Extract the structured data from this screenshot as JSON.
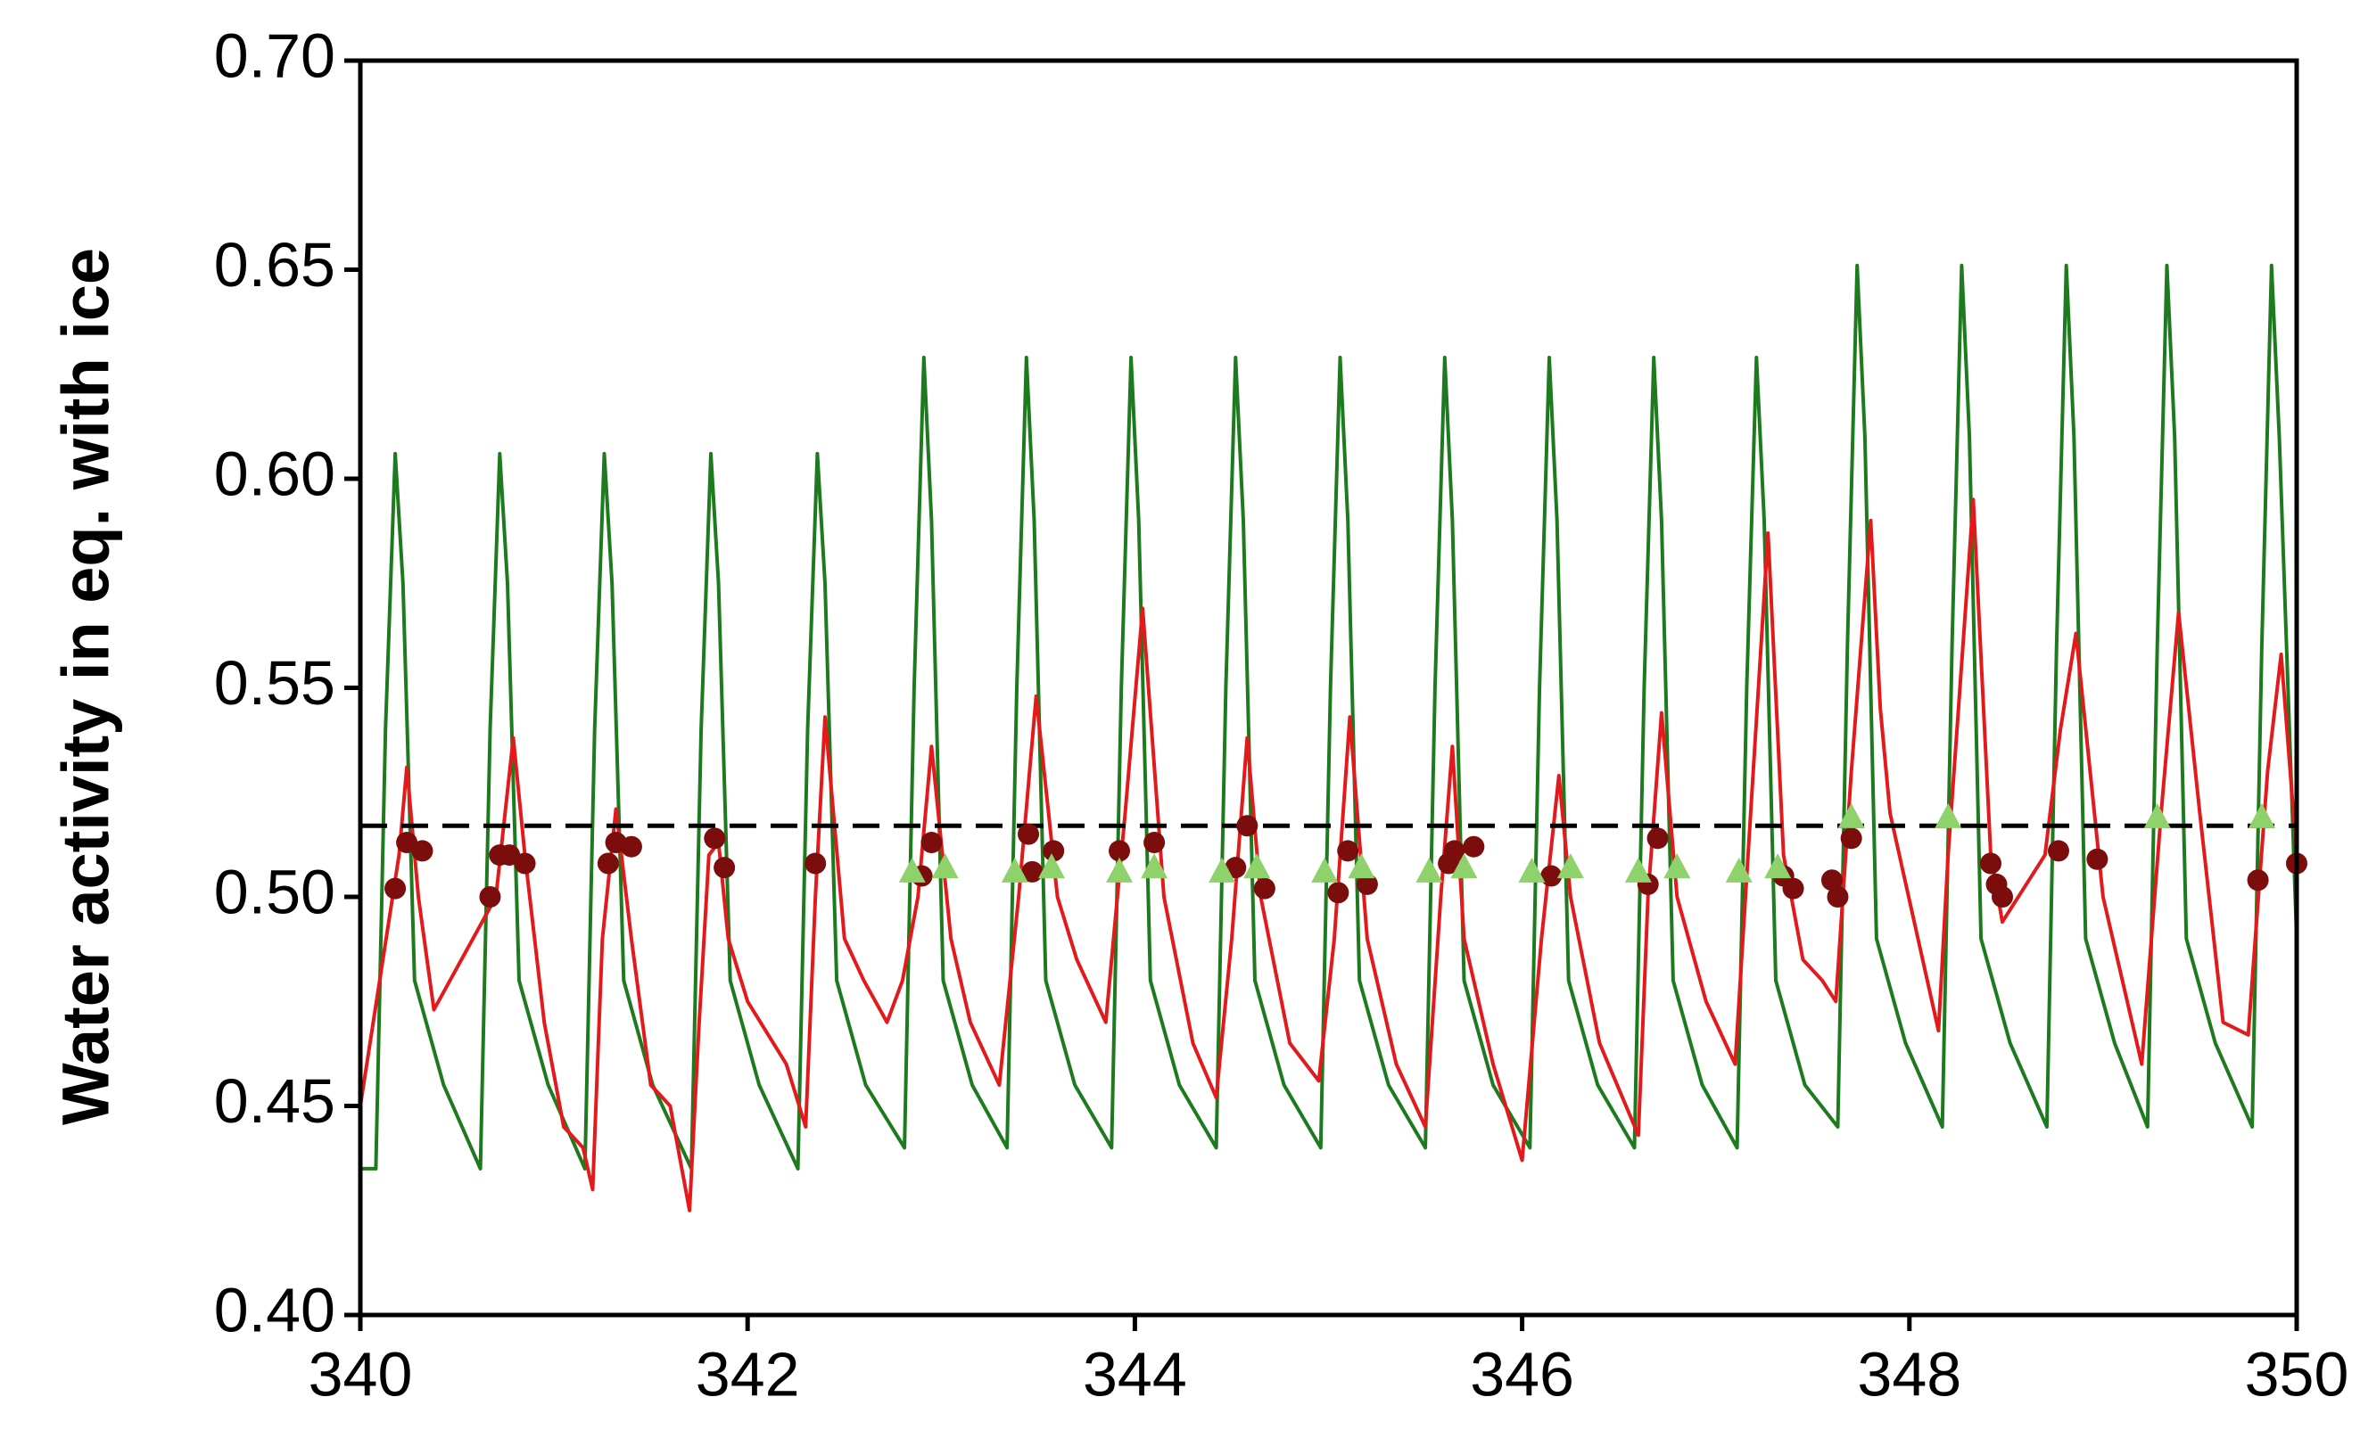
{
  "chart_data": {
    "type": "line",
    "ylabel": "Water activity in eq. with ice",
    "xlim": [
      340,
      350
    ],
    "xticks": [
      340,
      342,
      344,
      346,
      348,
      350
    ],
    "ylim": [
      0.4,
      0.7
    ],
    "yticks": [
      {
        "value": 0.4,
        "label": "0.40"
      },
      0.45,
      {
        "value": 0.5,
        "label": "0.50"
      },
      0.55,
      {
        "value": 0.6,
        "label": "0.60"
      },
      0.65,
      {
        "value": 0.7,
        "label": "0.70"
      }
    ],
    "hline": 0.517,
    "hline_color": "#000000",
    "series": [
      {
        "color": "#1e7a1e",
        "line": true,
        "marker": "none",
        "x": [
          340.0,
          340.08,
          340.13,
          340.18,
          340.22,
          340.28,
          340.43,
          340.62,
          340.67,
          340.72,
          340.76,
          340.82,
          340.97,
          341.16,
          341.21,
          341.26,
          341.3,
          341.36,
          341.51,
          341.71,
          341.76,
          341.81,
          341.85,
          341.91,
          342.06,
          342.26,
          342.31,
          342.36,
          342.4,
          342.46,
          342.61,
          342.81,
          342.86,
          342.91,
          342.95,
          343.01,
          343.16,
          343.34,
          343.39,
          343.44,
          343.48,
          343.54,
          343.69,
          343.88,
          343.93,
          343.98,
          344.02,
          344.08,
          344.23,
          344.42,
          344.47,
          344.52,
          344.56,
          344.62,
          344.77,
          344.96,
          345.01,
          345.06,
          345.1,
          345.16,
          345.31,
          345.5,
          345.55,
          345.6,
          345.64,
          345.7,
          345.85,
          346.04,
          346.09,
          346.14,
          346.18,
          346.24,
          346.39,
          346.58,
          346.63,
          346.68,
          346.72,
          346.78,
          346.93,
          347.11,
          347.16,
          347.21,
          347.25,
          347.31,
          347.46,
          347.63,
          347.68,
          347.73,
          347.77,
          347.83,
          347.98,
          348.17,
          348.22,
          348.27,
          348.31,
          348.37,
          348.52,
          348.71,
          348.76,
          348.81,
          348.85,
          348.91,
          349.06,
          349.23,
          349.28,
          349.33,
          349.37,
          349.43,
          349.58,
          349.77,
          349.82,
          349.87,
          349.91,
          350.0
        ],
        "values": [
          0.435,
          0.435,
          0.54,
          0.606,
          0.575,
          0.48,
          0.455,
          0.435,
          0.54,
          0.606,
          0.575,
          0.48,
          0.455,
          0.435,
          0.54,
          0.606,
          0.575,
          0.48,
          0.455,
          0.435,
          0.54,
          0.606,
          0.575,
          0.48,
          0.455,
          0.435,
          0.54,
          0.606,
          0.575,
          0.48,
          0.455,
          0.44,
          0.55,
          0.629,
          0.59,
          0.48,
          0.455,
          0.44,
          0.55,
          0.629,
          0.59,
          0.48,
          0.455,
          0.44,
          0.55,
          0.629,
          0.59,
          0.48,
          0.455,
          0.44,
          0.55,
          0.629,
          0.59,
          0.48,
          0.455,
          0.44,
          0.55,
          0.629,
          0.59,
          0.48,
          0.455,
          0.44,
          0.55,
          0.629,
          0.59,
          0.48,
          0.455,
          0.44,
          0.55,
          0.629,
          0.59,
          0.48,
          0.455,
          0.44,
          0.55,
          0.629,
          0.59,
          0.48,
          0.455,
          0.44,
          0.55,
          0.629,
          0.59,
          0.48,
          0.455,
          0.445,
          0.56,
          0.651,
          0.61,
          0.49,
          0.465,
          0.445,
          0.56,
          0.651,
          0.61,
          0.49,
          0.465,
          0.445,
          0.56,
          0.651,
          0.61,
          0.49,
          0.465,
          0.445,
          0.56,
          0.651,
          0.61,
          0.49,
          0.465,
          0.445,
          0.56,
          0.651,
          0.61,
          0.49
        ]
      },
      {
        "color": "#e31a1c",
        "line": true,
        "marker": "none",
        "x": [
          340.0,
          340.1,
          340.2,
          340.24,
          340.3,
          340.38,
          340.7,
          340.79,
          340.85,
          340.95,
          341.05,
          341.15,
          341.2,
          341.25,
          341.32,
          341.4,
          341.5,
          341.6,
          341.7,
          341.75,
          341.8,
          341.85,
          341.9,
          342.0,
          342.2,
          342.3,
          342.35,
          342.4,
          342.5,
          342.6,
          342.72,
          342.8,
          342.88,
          342.95,
          343.05,
          343.15,
          343.3,
          343.4,
          343.49,
          343.6,
          343.7,
          343.85,
          343.95,
          344.04,
          344.15,
          344.3,
          344.42,
          344.5,
          344.58,
          344.65,
          344.8,
          344.95,
          345.03,
          345.11,
          345.2,
          345.35,
          345.5,
          345.58,
          345.64,
          345.7,
          345.85,
          346.0,
          346.1,
          346.19,
          346.25,
          346.4,
          346.6,
          346.65,
          346.72,
          346.8,
          346.95,
          347.1,
          347.18,
          347.27,
          347.35,
          347.45,
          347.55,
          347.62,
          347.7,
          347.8,
          347.85,
          347.9,
          348.15,
          348.2,
          348.33,
          348.42,
          348.48,
          348.7,
          348.78,
          348.86,
          349.0,
          349.2,
          349.3,
          349.39,
          349.5,
          349.62,
          349.75,
          349.85,
          349.92,
          350.0
        ],
        "values": [
          0.45,
          0.48,
          0.51,
          0.531,
          0.5,
          0.473,
          0.5,
          0.538,
          0.51,
          0.47,
          0.445,
          0.44,
          0.43,
          0.49,
          0.521,
          0.49,
          0.455,
          0.45,
          0.425,
          0.47,
          0.51,
          0.513,
          0.49,
          0.475,
          0.46,
          0.445,
          0.5,
          0.543,
          0.49,
          0.48,
          0.47,
          0.48,
          0.5,
          0.536,
          0.49,
          0.47,
          0.455,
          0.5,
          0.548,
          0.5,
          0.485,
          0.47,
          0.52,
          0.569,
          0.5,
          0.465,
          0.452,
          0.49,
          0.538,
          0.5,
          0.465,
          0.456,
          0.49,
          0.543,
          0.49,
          0.46,
          0.445,
          0.5,
          0.536,
          0.49,
          0.46,
          0.437,
          0.49,
          0.529,
          0.5,
          0.465,
          0.443,
          0.5,
          0.544,
          0.5,
          0.475,
          0.46,
          0.52,
          0.587,
          0.51,
          0.485,
          0.48,
          0.475,
          0.53,
          0.59,
          0.545,
          0.52,
          0.468,
          0.51,
          0.595,
          0.51,
          0.494,
          0.51,
          0.54,
          0.563,
          0.5,
          0.46,
          0.52,
          0.568,
          0.52,
          0.47,
          0.467,
          0.53,
          0.558,
          0.51
        ]
      },
      {
        "color": "#7b0d0d",
        "line": false,
        "marker": "circle",
        "x": [
          340.18,
          340.24,
          340.32,
          340.67,
          340.72,
          340.77,
          340.85,
          341.28,
          341.32,
          341.4,
          341.83,
          341.88,
          342.35,
          342.9,
          342.95,
          343.45,
          343.47,
          343.58,
          343.92,
          344.1,
          344.52,
          344.58,
          344.67,
          345.05,
          345.1,
          345.2,
          345.62,
          345.65,
          345.75,
          346.15,
          346.65,
          346.7,
          347.35,
          347.4,
          347.6,
          347.63,
          347.7,
          348.42,
          348.45,
          348.48,
          348.77,
          348.97,
          349.8,
          350.0
        ],
        "values": [
          0.502,
          0.513,
          0.511,
          0.5,
          0.51,
          0.51,
          0.508,
          0.508,
          0.513,
          0.512,
          0.514,
          0.507,
          0.508,
          0.505,
          0.513,
          0.515,
          0.506,
          0.511,
          0.511,
          0.513,
          0.507,
          0.517,
          0.502,
          0.501,
          0.511,
          0.503,
          0.508,
          0.511,
          0.512,
          0.505,
          0.503,
          0.514,
          0.505,
          0.502,
          0.504,
          0.5,
          0.514,
          0.508,
          0.503,
          0.5,
          0.511,
          0.509,
          0.504,
          0.508
        ]
      },
      {
        "color": "#8fd16b",
        "line": false,
        "marker": "triangle",
        "x": [
          342.85,
          343.02,
          343.38,
          343.57,
          343.92,
          344.1,
          344.45,
          344.63,
          344.98,
          345.17,
          345.52,
          345.7,
          346.05,
          346.25,
          346.6,
          346.8,
          347.12,
          347.32,
          347.7,
          348.2,
          349.28,
          349.82
        ],
        "values": [
          0.506,
          0.507,
          0.506,
          0.507,
          0.506,
          0.507,
          0.506,
          0.507,
          0.506,
          0.507,
          0.506,
          0.507,
          0.506,
          0.507,
          0.506,
          0.507,
          0.506,
          0.507,
          0.519,
          0.519,
          0.519,
          0.519
        ]
      }
    ]
  }
}
